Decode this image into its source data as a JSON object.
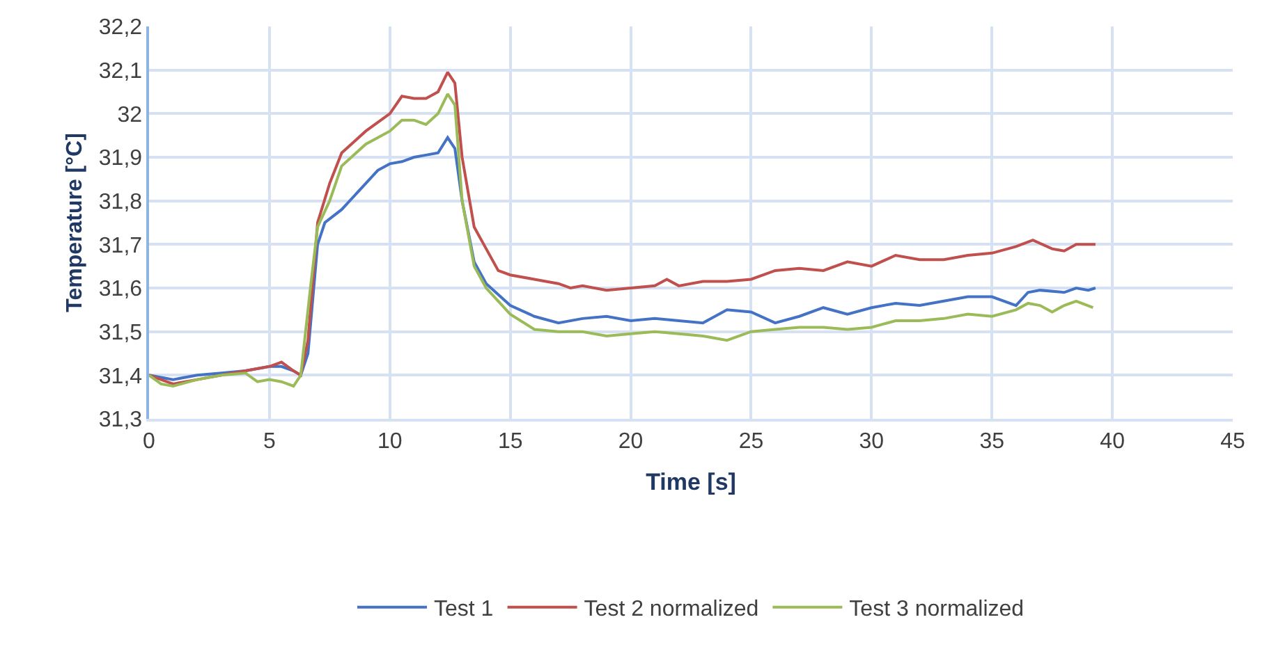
{
  "chart_data": {
    "type": "line",
    "xlabel": "Time [s]",
    "ylabel": "Temperature [°C]",
    "xlim": [
      0,
      45
    ],
    "xticks": [
      0,
      5,
      10,
      15,
      20,
      25,
      30,
      35,
      40,
      45
    ],
    "ylim": [
      31.3,
      32.2
    ],
    "yticks": [
      {
        "value": 31.3,
        "label": "31,3"
      },
      {
        "value": 31.4,
        "label": "31,4"
      },
      {
        "value": 31.5,
        "label": "31,5"
      },
      {
        "value": 31.6,
        "label": "31,6"
      },
      {
        "value": 31.7,
        "label": "31,7"
      },
      {
        "value": 31.8,
        "label": "31,8"
      },
      {
        "value": 31.9,
        "label": "31,9"
      },
      {
        "value": 32.0,
        "label": "32"
      },
      {
        "value": 32.1,
        "label": "32,1"
      },
      {
        "value": 32.2,
        "label": "32,2"
      }
    ],
    "grid": true,
    "legend": "bottom",
    "marker": "none",
    "line_style": "solid",
    "series": [
      {
        "name": "Test 1",
        "color": "#4472c4",
        "x": [
          0,
          0.5,
          1,
          2,
          3,
          4,
          5,
          5.5,
          6,
          6.3,
          6.6,
          7,
          7.3,
          8,
          9,
          9.5,
          10,
          10.5,
          11,
          11.5,
          12,
          12.4,
          12.7,
          13,
          13.5,
          14,
          15,
          16,
          17,
          18,
          19,
          20,
          21,
          22,
          23,
          24,
          25,
          26,
          27,
          28,
          29,
          30,
          31,
          32,
          33,
          34,
          35,
          36,
          36.5,
          37,
          38,
          38.5,
          39,
          39.3
        ],
        "values": [
          31.4,
          31.395,
          31.39,
          31.4,
          31.405,
          31.41,
          31.42,
          31.42,
          31.41,
          31.4,
          31.45,
          31.7,
          31.75,
          31.78,
          31.84,
          31.87,
          31.885,
          31.89,
          31.9,
          31.905,
          31.91,
          31.945,
          31.92,
          31.8,
          31.66,
          31.61,
          31.56,
          31.535,
          31.52,
          31.53,
          31.535,
          31.525,
          31.53,
          31.525,
          31.52,
          31.55,
          31.545,
          31.52,
          31.535,
          31.555,
          31.54,
          31.555,
          31.565,
          31.56,
          31.57,
          31.58,
          31.58,
          31.56,
          31.59,
          31.595,
          31.59,
          31.6,
          31.595,
          31.6
        ]
      },
      {
        "name": "Test 2 normalized",
        "color": "#c0504d",
        "x": [
          0,
          1,
          2,
          3,
          4,
          5,
          5.5,
          6,
          6.3,
          6.6,
          7,
          7.5,
          8,
          9,
          10,
          10.5,
          11,
          11.5,
          12,
          12.4,
          12.7,
          13,
          13.5,
          14,
          14.5,
          15,
          16,
          17,
          17.5,
          18,
          19,
          20,
          21,
          21.5,
          22,
          23,
          24,
          25,
          26,
          27,
          28,
          29,
          30,
          31,
          32,
          33,
          34,
          35,
          36,
          36.7,
          37.5,
          38,
          38.5,
          39.3
        ],
        "values": [
          31.4,
          31.38,
          31.39,
          31.4,
          31.41,
          31.42,
          31.43,
          31.41,
          31.4,
          31.48,
          31.75,
          31.84,
          31.91,
          31.96,
          32.0,
          32.04,
          32.035,
          32.035,
          32.05,
          32.095,
          32.07,
          31.9,
          31.74,
          31.69,
          31.64,
          31.63,
          31.62,
          31.61,
          31.6,
          31.605,
          31.595,
          31.6,
          31.605,
          31.62,
          31.605,
          31.615,
          31.615,
          31.62,
          31.64,
          31.645,
          31.64,
          31.66,
          31.65,
          31.675,
          31.665,
          31.665,
          31.675,
          31.68,
          31.695,
          31.71,
          31.69,
          31.685,
          31.7,
          31.7
        ]
      },
      {
        "name": "Test 3 normalized",
        "color": "#9bbb59",
        "x": [
          0,
          0.5,
          1,
          2,
          3,
          4,
          4.5,
          5,
          5.5,
          6,
          6.3,
          6.7,
          7,
          7.5,
          8,
          9,
          10,
          10.5,
          11,
          11.5,
          12,
          12.4,
          12.7,
          13,
          13.5,
          14,
          15,
          16,
          17,
          18,
          19,
          20,
          21,
          22,
          23,
          24,
          25,
          26,
          27,
          28,
          29,
          30,
          31,
          32,
          33,
          34,
          35,
          36,
          36.5,
          37,
          37.5,
          38,
          38.5,
          39.2
        ],
        "values": [
          31.4,
          31.38,
          31.375,
          31.39,
          31.4,
          31.405,
          31.385,
          31.39,
          31.385,
          31.375,
          31.4,
          31.6,
          31.74,
          31.8,
          31.88,
          31.93,
          31.96,
          31.985,
          31.985,
          31.975,
          32.0,
          32.045,
          32.02,
          31.8,
          31.65,
          31.6,
          31.54,
          31.505,
          31.5,
          31.5,
          31.49,
          31.495,
          31.5,
          31.495,
          31.49,
          31.48,
          31.5,
          31.505,
          31.51,
          31.51,
          31.505,
          31.51,
          31.525,
          31.525,
          31.53,
          31.54,
          31.535,
          31.55,
          31.565,
          31.56,
          31.545,
          31.56,
          31.57,
          31.555
        ]
      }
    ]
  }
}
